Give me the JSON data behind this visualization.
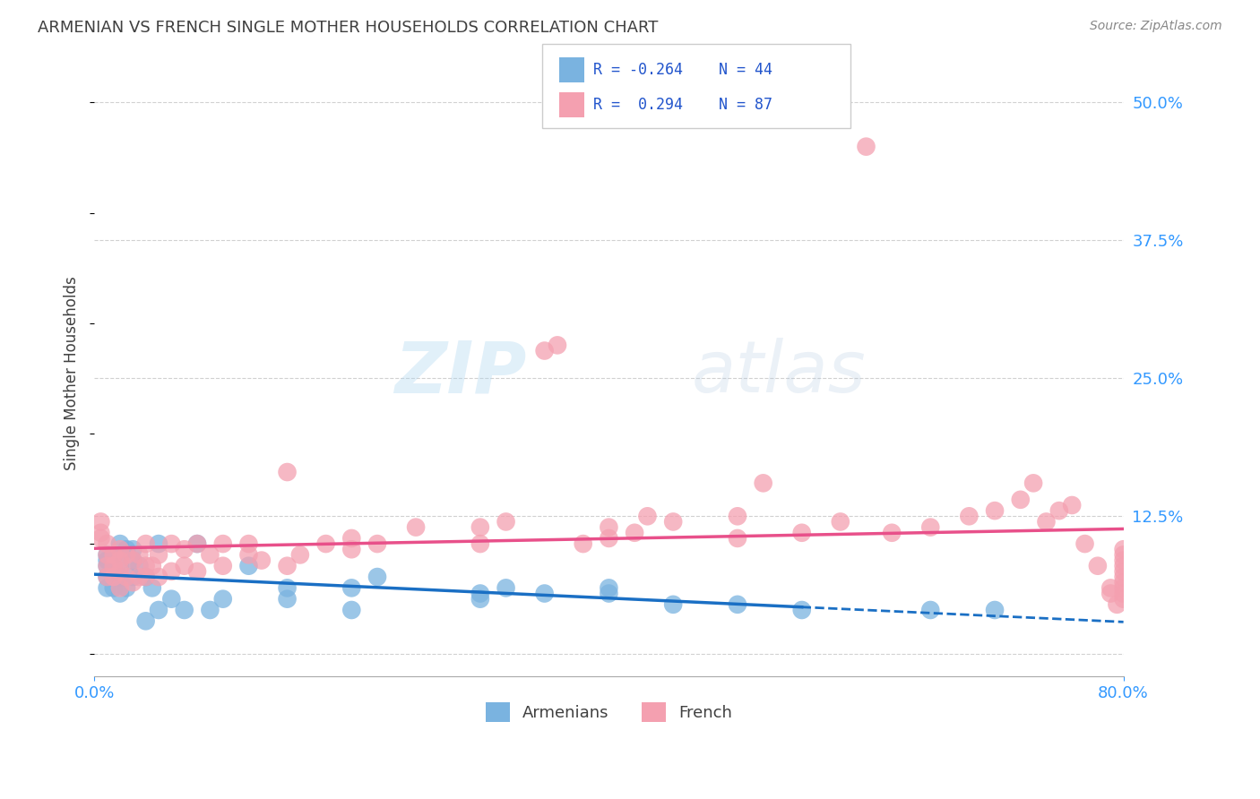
{
  "title": "ARMENIAN VS FRENCH SINGLE MOTHER HOUSEHOLDS CORRELATION CHART",
  "source": "Source: ZipAtlas.com",
  "ylabel": "Single Mother Households",
  "xlim": [
    0.0,
    0.8
  ],
  "ylim": [
    -0.02,
    0.53
  ],
  "yticks": [
    0.0,
    0.125,
    0.25,
    0.375,
    0.5
  ],
  "ytick_labels": [
    "",
    "12.5%",
    "25.0%",
    "37.5%",
    "50.0%"
  ],
  "armenian_R": -0.264,
  "armenian_N": 44,
  "french_R": 0.294,
  "french_N": 87,
  "armenian_color": "#7ab3e0",
  "french_color": "#f4a0b0",
  "armenian_line_color": "#1a6fc4",
  "french_line_color": "#e8508a",
  "background_color": "#ffffff",
  "grid_color": "#cccccc",
  "title_color": "#404040",
  "axis_label_color": "#404040",
  "tick_color": "#3399ff",
  "watermark_zip": "ZIP",
  "watermark_atlas": "atlas",
  "armenian_x": [
    0.01,
    0.01,
    0.01,
    0.01,
    0.01,
    0.015,
    0.015,
    0.02,
    0.02,
    0.02,
    0.02,
    0.025,
    0.025,
    0.03,
    0.03,
    0.03,
    0.035,
    0.04,
    0.04,
    0.045,
    0.05,
    0.05,
    0.06,
    0.07,
    0.08,
    0.09,
    0.1,
    0.12,
    0.15,
    0.15,
    0.2,
    0.2,
    0.22,
    0.3,
    0.3,
    0.32,
    0.35,
    0.4,
    0.4,
    0.45,
    0.5,
    0.55,
    0.65,
    0.7
  ],
  "armenian_y": [
    0.06,
    0.07,
    0.08,
    0.085,
    0.09,
    0.06,
    0.09,
    0.055,
    0.07,
    0.08,
    0.1,
    0.06,
    0.095,
    0.07,
    0.085,
    0.095,
    0.08,
    0.03,
    0.07,
    0.06,
    0.1,
    0.04,
    0.05,
    0.04,
    0.1,
    0.04,
    0.05,
    0.08,
    0.05,
    0.06,
    0.04,
    0.06,
    0.07,
    0.05,
    0.055,
    0.06,
    0.055,
    0.055,
    0.06,
    0.045,
    0.045,
    0.04,
    0.04,
    0.04
  ],
  "french_x": [
    0.005,
    0.005,
    0.005,
    0.01,
    0.01,
    0.01,
    0.01,
    0.015,
    0.015,
    0.015,
    0.02,
    0.02,
    0.02,
    0.02,
    0.025,
    0.025,
    0.03,
    0.03,
    0.035,
    0.035,
    0.04,
    0.04,
    0.04,
    0.045,
    0.05,
    0.05,
    0.06,
    0.06,
    0.07,
    0.07,
    0.08,
    0.08,
    0.09,
    0.1,
    0.1,
    0.12,
    0.12,
    0.13,
    0.15,
    0.15,
    0.16,
    0.18,
    0.2,
    0.2,
    0.22,
    0.25,
    0.3,
    0.3,
    0.32,
    0.35,
    0.36,
    0.38,
    0.4,
    0.4,
    0.42,
    0.43,
    0.45,
    0.5,
    0.5,
    0.52,
    0.55,
    0.58,
    0.6,
    0.62,
    0.65,
    0.68,
    0.7,
    0.72,
    0.73,
    0.74,
    0.75,
    0.76,
    0.77,
    0.78,
    0.79,
    0.79,
    0.795,
    0.8,
    0.8,
    0.8,
    0.8,
    0.8,
    0.8,
    0.8,
    0.8,
    0.8,
    0.8
  ],
  "french_y": [
    0.105,
    0.11,
    0.12,
    0.07,
    0.08,
    0.09,
    0.1,
    0.07,
    0.08,
    0.09,
    0.06,
    0.075,
    0.085,
    0.095,
    0.07,
    0.09,
    0.065,
    0.085,
    0.07,
    0.09,
    0.07,
    0.08,
    0.1,
    0.08,
    0.07,
    0.09,
    0.075,
    0.1,
    0.08,
    0.095,
    0.075,
    0.1,
    0.09,
    0.08,
    0.1,
    0.09,
    0.1,
    0.085,
    0.08,
    0.165,
    0.09,
    0.1,
    0.095,
    0.105,
    0.1,
    0.115,
    0.1,
    0.115,
    0.12,
    0.275,
    0.28,
    0.1,
    0.105,
    0.115,
    0.11,
    0.125,
    0.12,
    0.105,
    0.125,
    0.155,
    0.11,
    0.12,
    0.46,
    0.11,
    0.115,
    0.125,
    0.13,
    0.14,
    0.155,
    0.12,
    0.13,
    0.135,
    0.1,
    0.08,
    0.055,
    0.06,
    0.045,
    0.05,
    0.055,
    0.06,
    0.065,
    0.07,
    0.075,
    0.08,
    0.085,
    0.09,
    0.095
  ]
}
